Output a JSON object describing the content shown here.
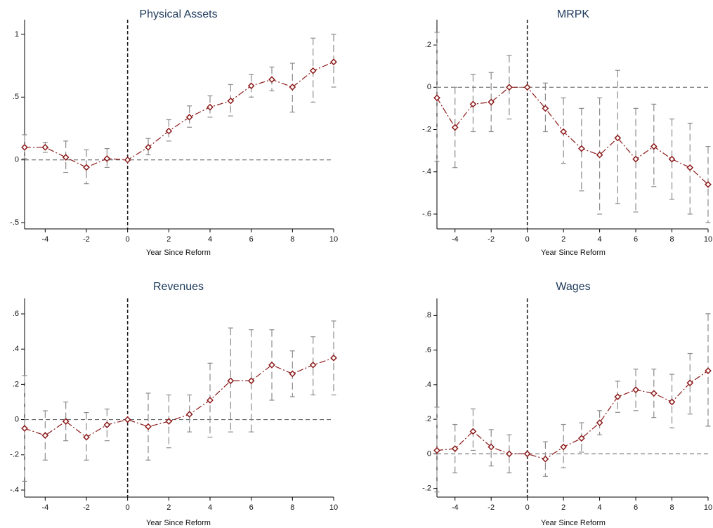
{
  "chart_data": [
    {
      "type": "line",
      "title": "Physical Assets",
      "xlabel": "Year Since Reform",
      "ylabel": "",
      "xlim": [
        -5,
        10
      ],
      "ylim": [
        -0.55,
        1.05
      ],
      "xticks": [
        -4,
        -2,
        0,
        2,
        4,
        6,
        8,
        10
      ],
      "xtick_labels": [
        "-4",
        "-2",
        "0",
        "2",
        "4",
        "6",
        "8",
        "10"
      ],
      "yticks": [
        -0.5,
        0,
        0.5,
        1
      ],
      "ytick_labels": [
        "-.5",
        "0",
        ".5",
        "1"
      ],
      "reference_lines": {
        "y": 0,
        "x": 0
      },
      "series": [
        {
          "x": [
            -5,
            -4,
            -3,
            -2,
            -1,
            0,
            1,
            2,
            3,
            4,
            5,
            6,
            7,
            8,
            9,
            10
          ],
          "values": [
            0.1,
            0.1,
            0.02,
            -0.06,
            0.01,
            0.0,
            0.1,
            0.23,
            0.34,
            0.42,
            0.47,
            0.59,
            0.64,
            0.58,
            0.71,
            0.78
          ],
          "ci_low": [
            0.01,
            0.06,
            -0.1,
            -0.19,
            -0.06,
            0.0,
            0.04,
            0.15,
            0.26,
            0.34,
            0.35,
            0.5,
            0.55,
            0.38,
            0.46,
            0.58
          ],
          "ci_high": [
            0.2,
            0.14,
            0.15,
            0.08,
            0.09,
            0.0,
            0.17,
            0.32,
            0.43,
            0.51,
            0.6,
            0.68,
            0.74,
            0.77,
            0.97,
            1.0
          ]
        }
      ],
      "colors": {
        "series": "#8b1a1a",
        "ci": "#8c8c8c",
        "reference": "#555555"
      }
    },
    {
      "type": "line",
      "title": "MRPK",
      "xlabel": "Year Since Reform",
      "ylabel": "",
      "xlim": [
        -5,
        10
      ],
      "ylim": [
        -0.67,
        0.28
      ],
      "xticks": [
        -4,
        -2,
        0,
        2,
        4,
        6,
        8,
        10
      ],
      "xtick_labels": [
        "-4",
        "-2",
        "0",
        "2",
        "4",
        "6",
        "8",
        "10"
      ],
      "yticks": [
        -0.6,
        -0.4,
        -0.2,
        0,
        0.2
      ],
      "ytick_labels": [
        "-.6",
        "-.4",
        "-.2",
        "0",
        ".2"
      ],
      "reference_lines": {
        "y": 0,
        "x": 0
      },
      "series": [
        {
          "x": [
            -5,
            -4,
            -3,
            -2,
            -1,
            0,
            1,
            2,
            3,
            4,
            5,
            6,
            7,
            8,
            9,
            10
          ],
          "values": [
            -0.05,
            -0.19,
            -0.08,
            -0.07,
            0.0,
            0.0,
            -0.1,
            -0.21,
            -0.29,
            -0.32,
            -0.24,
            -0.34,
            -0.28,
            -0.34,
            -0.38,
            -0.46
          ],
          "ci_low": [
            -0.35,
            -0.38,
            -0.21,
            -0.21,
            -0.15,
            0.0,
            -0.21,
            -0.36,
            -0.49,
            -0.6,
            -0.55,
            -0.59,
            -0.47,
            -0.53,
            -0.6,
            -0.64
          ],
          "ci_high": [
            0.26,
            0.0,
            0.06,
            0.07,
            0.15,
            0.0,
            0.02,
            -0.05,
            -0.1,
            -0.05,
            0.08,
            -0.1,
            -0.08,
            -0.15,
            -0.17,
            -0.28
          ]
        }
      ],
      "colors": {
        "series": "#8b1a1a",
        "ci": "#8c8c8c",
        "reference": "#555555"
      }
    },
    {
      "type": "line",
      "title": "Revenues",
      "xlabel": "Year Since Reform",
      "ylabel": "",
      "xlim": [
        -5,
        10
      ],
      "ylim": [
        -0.44,
        0.64
      ],
      "xticks": [
        -4,
        -2,
        0,
        2,
        4,
        6,
        8,
        10
      ],
      "xtick_labels": [
        "-4",
        "-2",
        "0",
        "2",
        "4",
        "6",
        "8",
        "10"
      ],
      "yticks": [
        -0.4,
        -0.2,
        0,
        0.2,
        0.4,
        0.6
      ],
      "ytick_labels": [
        "-.4",
        "-.2",
        "0",
        ".2",
        ".4",
        ".6"
      ],
      "reference_lines": {
        "y": 0,
        "x": 0
      },
      "series": [
        {
          "x": [
            -5,
            -4,
            -3,
            -2,
            -1,
            0,
            1,
            2,
            3,
            4,
            5,
            6,
            7,
            8,
            9,
            10
          ],
          "values": [
            -0.05,
            -0.09,
            -0.01,
            -0.1,
            -0.03,
            0.0,
            -0.04,
            -0.01,
            0.03,
            0.11,
            0.22,
            0.22,
            0.31,
            0.26,
            0.31,
            0.35
          ],
          "ci_low": [
            -0.35,
            -0.23,
            -0.12,
            -0.23,
            -0.12,
            0.0,
            -0.23,
            -0.16,
            -0.07,
            -0.1,
            -0.07,
            -0.07,
            0.11,
            0.13,
            0.14,
            0.14
          ],
          "ci_high": [
            0.25,
            0.05,
            0.1,
            0.04,
            0.06,
            0.0,
            0.15,
            0.14,
            0.14,
            0.32,
            0.52,
            0.51,
            0.51,
            0.39,
            0.47,
            0.56
          ]
        }
      ],
      "colors": {
        "series": "#8b1a1a",
        "ci": "#8c8c8c",
        "reference": "#555555"
      }
    },
    {
      "type": "line",
      "title": "Wages",
      "xlabel": "Year Since Reform",
      "ylabel": "",
      "xlim": [
        -5,
        10
      ],
      "ylim": [
        -0.25,
        0.85
      ],
      "xticks": [
        -4,
        -2,
        0,
        2,
        4,
        6,
        8,
        10
      ],
      "xtick_labels": [
        "-4",
        "-2",
        "0",
        "2",
        "4",
        "6",
        "8",
        "10"
      ],
      "yticks": [
        -0.2,
        0,
        0.2,
        0.4,
        0.6,
        0.8
      ],
      "ytick_labels": [
        "-.2",
        "0",
        ".2",
        ".4",
        ".6",
        ".8"
      ],
      "reference_lines": {
        "y": 0,
        "x": 0
      },
      "series": [
        {
          "x": [
            -5,
            -4,
            -3,
            -2,
            -1,
            0,
            1,
            2,
            3,
            4,
            5,
            6,
            7,
            8,
            9,
            10
          ],
          "values": [
            0.02,
            0.03,
            0.13,
            0.04,
            0.0,
            0.0,
            -0.03,
            0.04,
            0.09,
            0.18,
            0.33,
            0.37,
            0.35,
            0.3,
            0.41,
            0.48
          ],
          "ci_low": [
            -0.22,
            -0.11,
            0.02,
            -0.07,
            -0.11,
            0.0,
            -0.13,
            -0.08,
            0.01,
            0.11,
            0.24,
            0.25,
            0.21,
            0.15,
            0.23,
            0.16
          ],
          "ci_high": [
            0.27,
            0.17,
            0.26,
            0.14,
            0.11,
            0.0,
            0.07,
            0.17,
            0.18,
            0.25,
            0.42,
            0.49,
            0.49,
            0.46,
            0.58,
            0.81
          ]
        }
      ],
      "colors": {
        "series": "#8b1a1a",
        "ci": "#8c8c8c",
        "reference": "#555555"
      }
    }
  ]
}
